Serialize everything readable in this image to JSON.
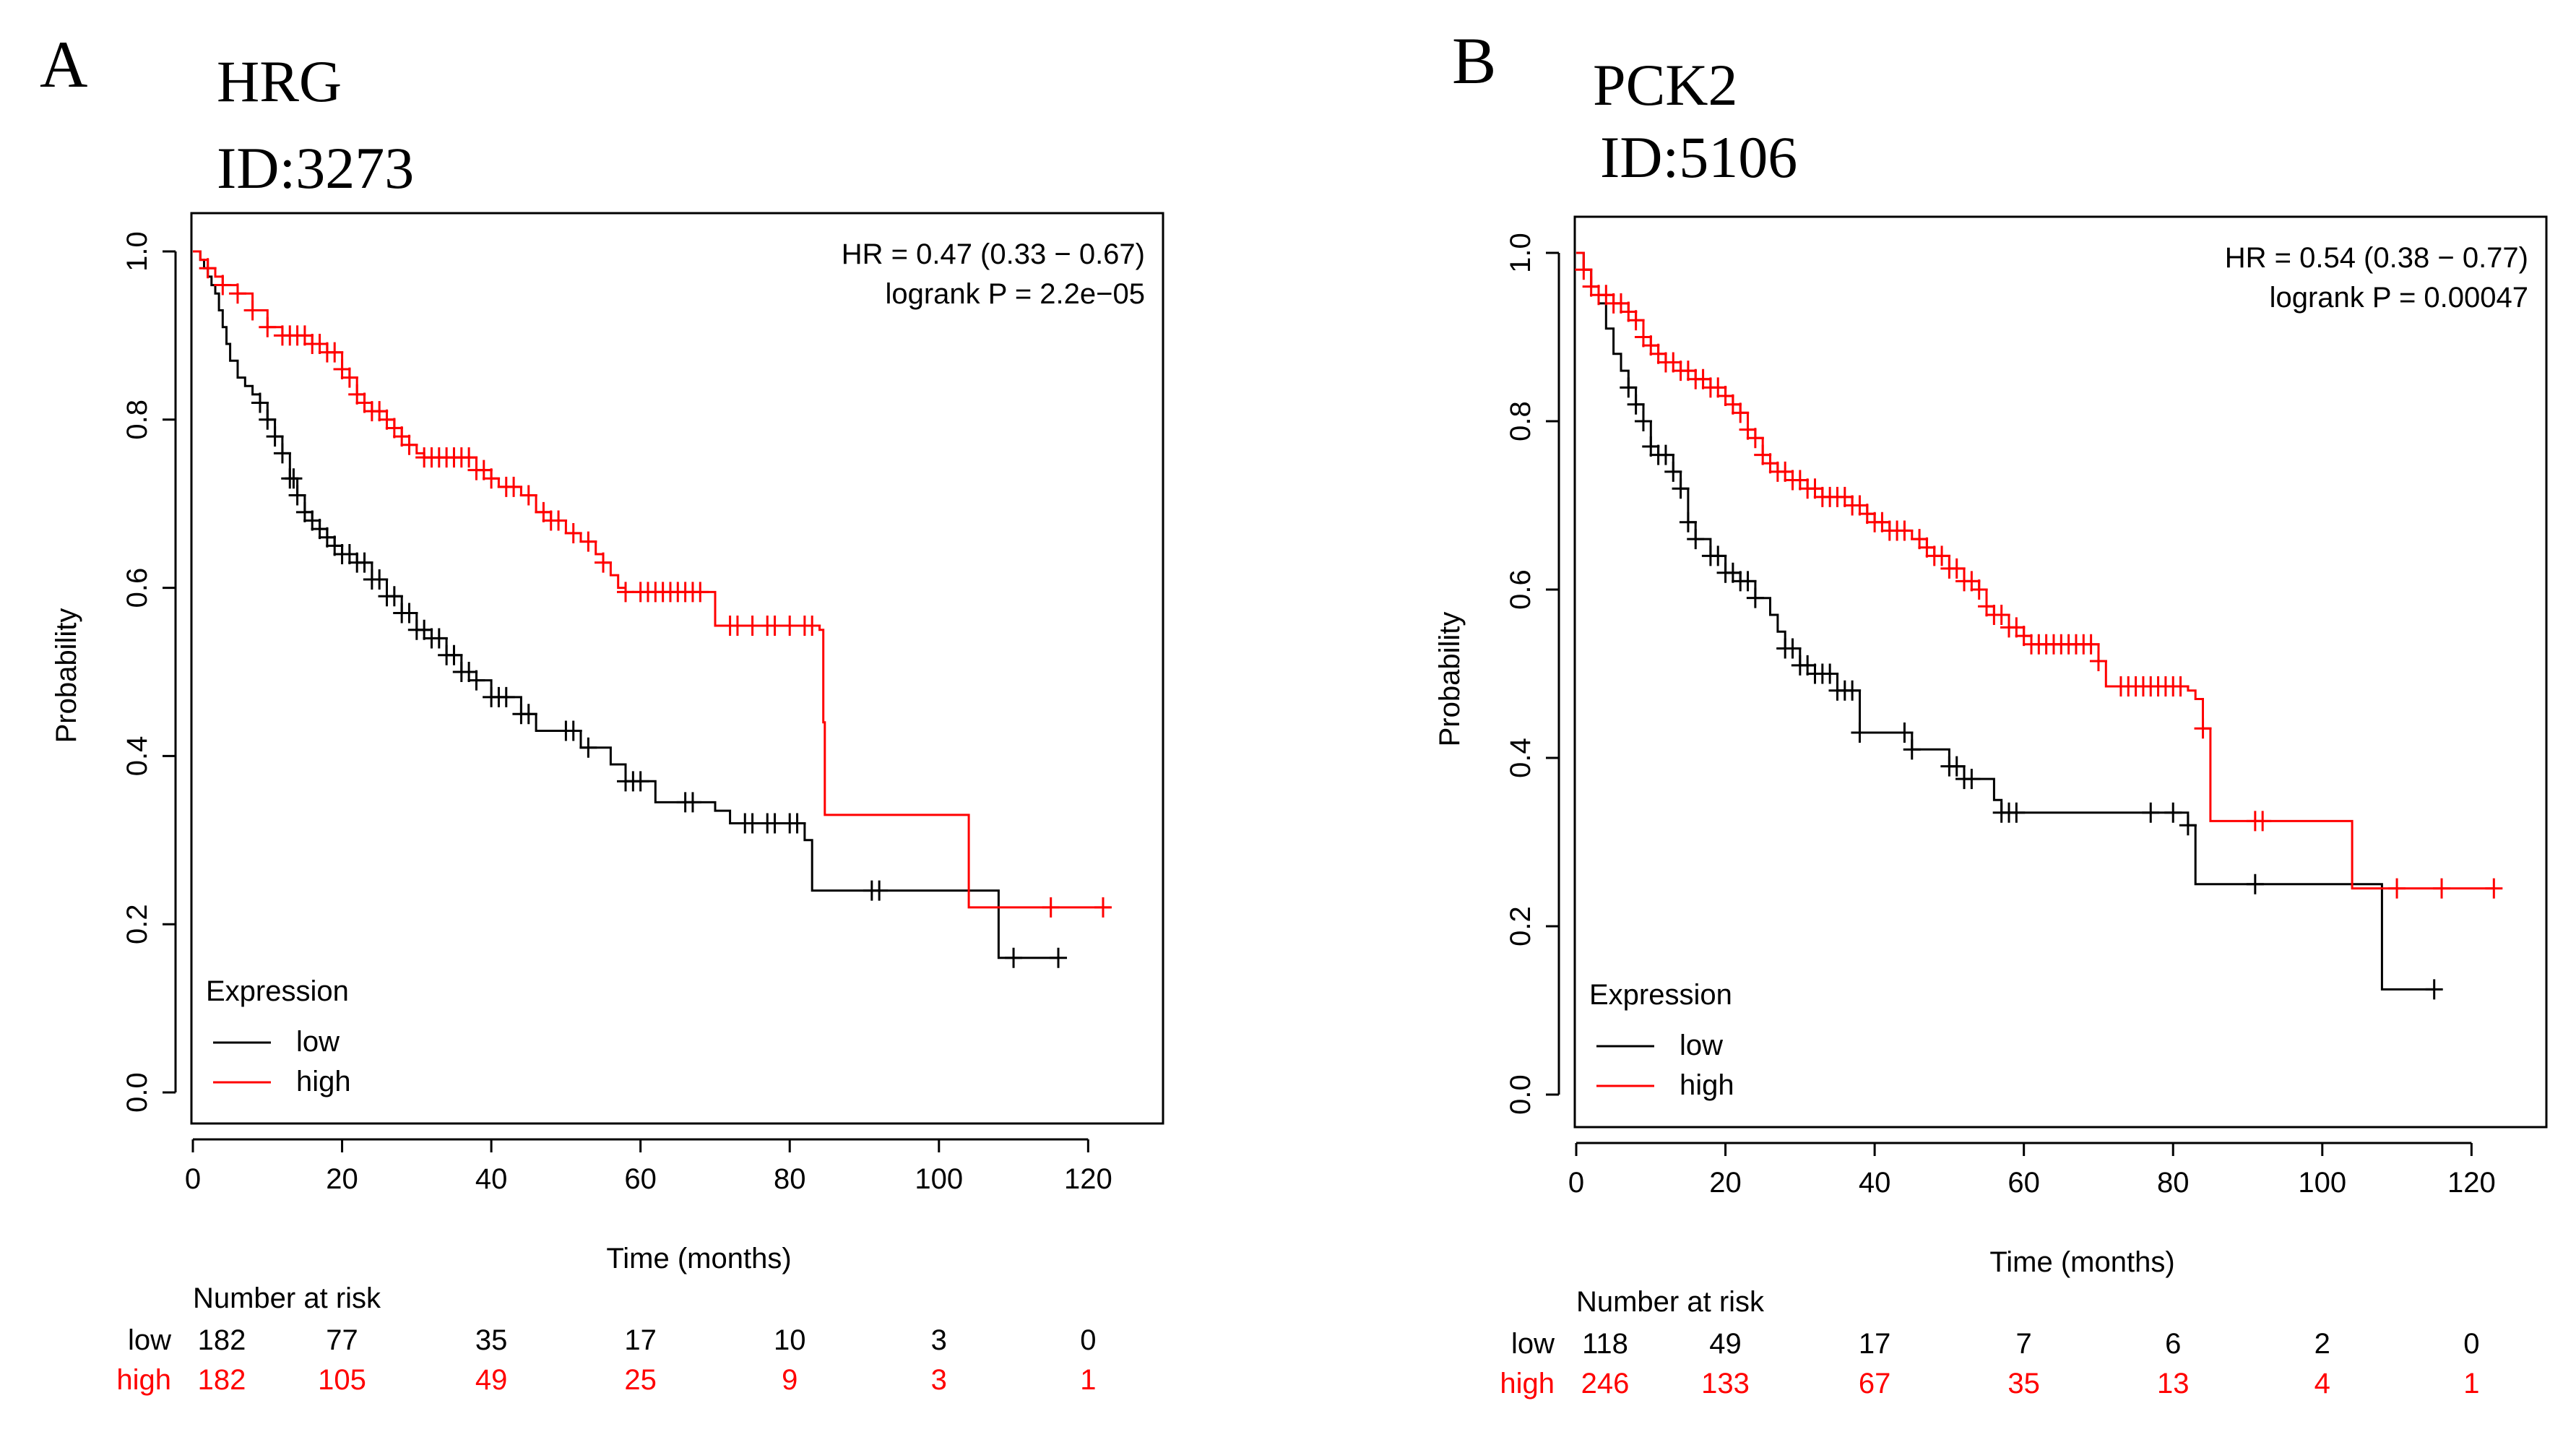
{
  "colors": {
    "low": "#000000",
    "high": "#ff0000"
  },
  "chart_data": [
    {
      "panel_letter": "A",
      "gene": "HRG",
      "gene_id": "ID:3273",
      "type": "line",
      "subtype": "kaplan-meier",
      "xlabel": "Time (months)",
      "ylabel": "Probability",
      "xlim": [
        0,
        122
      ],
      "ylim": [
        0,
        1
      ],
      "x_ticks": [
        0,
        20,
        40,
        60,
        80,
        100,
        120
      ],
      "y_ticks": [
        0.0,
        0.2,
        0.4,
        0.6,
        0.8,
        1.0
      ],
      "hr_text": "HR = 0.47 (0.33 − 0.67)",
      "p_text": "logrank P = 2.2e−05",
      "legend_title": "Expression",
      "legend_position": "bottom-left",
      "series": [
        {
          "name": "low",
          "steps": [
            [
              0,
              1.0
            ],
            [
              1,
              0.99
            ],
            [
              1.5,
              0.98
            ],
            [
              2,
              0.97
            ],
            [
              2.5,
              0.96
            ],
            [
              3,
              0.95
            ],
            [
              3.5,
              0.93
            ],
            [
              4,
              0.91
            ],
            [
              4.5,
              0.89
            ],
            [
              5,
              0.87
            ],
            [
              6,
              0.85
            ],
            [
              7,
              0.84
            ],
            [
              8,
              0.83
            ],
            [
              9,
              0.82
            ],
            [
              10,
              0.8
            ],
            [
              11,
              0.78
            ],
            [
              12,
              0.76
            ],
            [
              13,
              0.73
            ],
            [
              14,
              0.71
            ],
            [
              15,
              0.69
            ],
            [
              16,
              0.68
            ],
            [
              17,
              0.67
            ],
            [
              18,
              0.66
            ],
            [
              19,
              0.65
            ],
            [
              20,
              0.64
            ],
            [
              22,
              0.63
            ],
            [
              24,
              0.61
            ],
            [
              26,
              0.59
            ],
            [
              28,
              0.57
            ],
            [
              30,
              0.55
            ],
            [
              32,
              0.54
            ],
            [
              34,
              0.52
            ],
            [
              36,
              0.5
            ],
            [
              38,
              0.49
            ],
            [
              40,
              0.47
            ],
            [
              44,
              0.45
            ],
            [
              46,
              0.43
            ],
            [
              52,
              0.41
            ],
            [
              56,
              0.39
            ],
            [
              58,
              0.37
            ],
            [
              62,
              0.345
            ],
            [
              70,
              0.335
            ],
            [
              72,
              0.32
            ],
            [
              82,
              0.3
            ],
            [
              83,
              0.24
            ],
            [
              108,
              0.16
            ],
            [
              116,
              0.16
            ]
          ],
          "censors": [
            9,
            10,
            11,
            12,
            13,
            13.5,
            14,
            15,
            16,
            17,
            18,
            19,
            20,
            21,
            22,
            23,
            24,
            25,
            26,
            27,
            28,
            29,
            30,
            31,
            32,
            33,
            34,
            35,
            36,
            37,
            38,
            40,
            41,
            42,
            44,
            45,
            50,
            51,
            53,
            58,
            59,
            60,
            66,
            67,
            74,
            75,
            77,
            78,
            80,
            81,
            91,
            92,
            110,
            116
          ],
          "at_risk": [
            182,
            77,
            35,
            17,
            10,
            3,
            0
          ]
        },
        {
          "name": "high",
          "steps": [
            [
              0,
              1.0
            ],
            [
              1,
              0.99
            ],
            [
              2,
              0.98
            ],
            [
              3,
              0.97
            ],
            [
              4,
              0.96
            ],
            [
              6,
              0.95
            ],
            [
              8,
              0.93
            ],
            [
              10,
              0.91
            ],
            [
              12,
              0.9
            ],
            [
              16,
              0.89
            ],
            [
              18,
              0.88
            ],
            [
              20,
              0.86
            ],
            [
              21,
              0.85
            ],
            [
              22,
              0.83
            ],
            [
              23,
              0.82
            ],
            [
              24,
              0.81
            ],
            [
              26,
              0.8
            ],
            [
              27,
              0.79
            ],
            [
              28,
              0.78
            ],
            [
              29,
              0.77
            ],
            [
              30,
              0.76
            ],
            [
              31,
              0.755
            ],
            [
              38,
              0.74
            ],
            [
              40,
              0.73
            ],
            [
              41,
              0.72
            ],
            [
              44,
              0.71
            ],
            [
              46,
              0.69
            ],
            [
              48,
              0.68
            ],
            [
              50,
              0.665
            ],
            [
              52,
              0.655
            ],
            [
              54,
              0.64
            ],
            [
              55,
              0.63
            ],
            [
              56,
              0.615
            ],
            [
              57,
              0.6
            ],
            [
              58,
              0.595
            ],
            [
              70,
              0.555
            ],
            [
              84,
              0.55
            ],
            [
              84.5,
              0.44
            ],
            [
              84.7,
              0.33
            ],
            [
              104,
              0.22
            ],
            [
              123,
              0.22
            ]
          ],
          "censors": [
            2,
            4,
            6,
            8,
            10,
            12,
            13,
            14,
            15,
            16,
            17,
            18,
            19,
            20,
            21,
            22,
            23,
            24,
            25,
            26,
            27,
            28,
            29,
            31,
            32,
            33,
            34,
            35,
            36,
            37,
            38,
            39,
            40,
            42,
            43,
            45,
            47,
            48,
            49,
            51,
            53,
            55,
            58,
            60,
            61,
            62,
            63,
            64,
            65,
            66,
            67,
            68,
            72,
            73,
            75,
            77,
            78,
            80,
            82,
            83,
            115,
            122
          ],
          "at_risk": [
            182,
            105,
            49,
            25,
            9,
            3,
            1
          ]
        }
      ],
      "risk_table": {
        "title": "Number at risk",
        "rows": [
          "low",
          "high"
        ]
      }
    },
    {
      "panel_letter": "B",
      "gene": "PCK2",
      "gene_id": "ID:5106",
      "type": "line",
      "subtype": "kaplan-meier",
      "xlabel": "Time (months)",
      "ylabel": "Probability",
      "xlim": [
        0,
        122
      ],
      "ylim": [
        0,
        1
      ],
      "x_ticks": [
        0,
        20,
        40,
        60,
        80,
        100,
        120
      ],
      "y_ticks": [
        0.0,
        0.2,
        0.4,
        0.6,
        0.8,
        1.0
      ],
      "hr_text": "HR = 0.54 (0.38 − 0.77)",
      "p_text": "logrank P = 0.00047",
      "legend_title": "Expression",
      "legend_position": "bottom-left",
      "series": [
        {
          "name": "low",
          "steps": [
            [
              0,
              1.0
            ],
            [
              1,
              0.98
            ],
            [
              2,
              0.96
            ],
            [
              3,
              0.94
            ],
            [
              4,
              0.91
            ],
            [
              5,
              0.88
            ],
            [
              6,
              0.86
            ],
            [
              7,
              0.84
            ],
            [
              8,
              0.82
            ],
            [
              9,
              0.8
            ],
            [
              10,
              0.77
            ],
            [
              11,
              0.76
            ],
            [
              13,
              0.74
            ],
            [
              14,
              0.72
            ],
            [
              15,
              0.68
            ],
            [
              16,
              0.66
            ],
            [
              18,
              0.64
            ],
            [
              20,
              0.62
            ],
            [
              22,
              0.61
            ],
            [
              24,
              0.59
            ],
            [
              26,
              0.57
            ],
            [
              27,
              0.55
            ],
            [
              28,
              0.53
            ],
            [
              30,
              0.51
            ],
            [
              32,
              0.5
            ],
            [
              35,
              0.48
            ],
            [
              38,
              0.43
            ],
            [
              45,
              0.41
            ],
            [
              50,
              0.39
            ],
            [
              52,
              0.375
            ],
            [
              56,
              0.35
            ],
            [
              57,
              0.335
            ],
            [
              82,
              0.32
            ],
            [
              83,
              0.25
            ],
            [
              108,
              0.125
            ],
            [
              115,
              0.125
            ]
          ],
          "censors": [
            7,
            8,
            9,
            10,
            11,
            12,
            13,
            14,
            15,
            16,
            18,
            19,
            20,
            21,
            22,
            23,
            24,
            28,
            29,
            30,
            31,
            32,
            33,
            34,
            35,
            36,
            37,
            38,
            44,
            45,
            50,
            51,
            52,
            53,
            57,
            58,
            59,
            77,
            80,
            82,
            91,
            115
          ],
          "at_risk": [
            118,
            49,
            17,
            7,
            6,
            2,
            0
          ]
        },
        {
          "name": "high",
          "steps": [
            [
              0,
              1.0
            ],
            [
              1,
              0.98
            ],
            [
              2,
              0.96
            ],
            [
              3,
              0.95
            ],
            [
              5,
              0.94
            ],
            [
              7,
              0.93
            ],
            [
              8,
              0.92
            ],
            [
              9,
              0.9
            ],
            [
              10,
              0.89
            ],
            [
              11,
              0.88
            ],
            [
              12,
              0.87
            ],
            [
              14,
              0.86
            ],
            [
              16,
              0.85
            ],
            [
              18,
              0.84
            ],
            [
              20,
              0.83
            ],
            [
              21,
              0.82
            ],
            [
              22,
              0.81
            ],
            [
              23,
              0.79
            ],
            [
              24,
              0.78
            ],
            [
              25,
              0.76
            ],
            [
              26,
              0.75
            ],
            [
              27,
              0.74
            ],
            [
              29,
              0.73
            ],
            [
              31,
              0.72
            ],
            [
              33,
              0.71
            ],
            [
              37,
              0.7
            ],
            [
              39,
              0.69
            ],
            [
              40,
              0.68
            ],
            [
              42,
              0.67
            ],
            [
              45,
              0.66
            ],
            [
              47,
              0.65
            ],
            [
              48,
              0.64
            ],
            [
              50,
              0.625
            ],
            [
              52,
              0.61
            ],
            [
              54,
              0.6
            ],
            [
              55,
              0.58
            ],
            [
              56,
              0.57
            ],
            [
              58,
              0.555
            ],
            [
              60,
              0.545
            ],
            [
              61,
              0.535
            ],
            [
              70,
              0.515
            ],
            [
              71,
              0.485
            ],
            [
              82,
              0.48
            ],
            [
              83,
              0.47
            ],
            [
              84,
              0.435
            ],
            [
              85,
              0.325
            ],
            [
              104,
              0.245
            ],
            [
              123,
              0.245
            ]
          ],
          "censors": [
            1,
            2,
            3,
            4,
            5,
            6,
            7,
            8,
            9,
            10,
            11,
            12,
            13,
            14,
            15,
            16,
            17,
            18,
            19,
            20,
            21,
            22,
            23,
            24,
            25,
            26,
            27,
            28,
            29,
            30,
            31,
            32,
            33,
            34,
            35,
            36,
            37,
            38,
            39,
            40,
            41,
            42,
            43,
            44,
            46,
            47,
            48,
            49,
            50,
            51,
            52,
            53,
            54,
            55,
            56,
            57,
            58,
            59,
            60,
            61,
            62,
            63,
            64,
            65,
            66,
            67,
            68,
            69,
            70,
            73,
            74,
            75,
            76,
            77,
            78,
            79,
            80,
            81,
            84,
            91,
            92,
            110,
            116,
            123
          ],
          "at_risk": [
            246,
            133,
            67,
            35,
            13,
            4,
            1
          ]
        }
      ],
      "risk_table": {
        "title": "Number at risk",
        "rows": [
          "low",
          "high"
        ]
      }
    }
  ]
}
